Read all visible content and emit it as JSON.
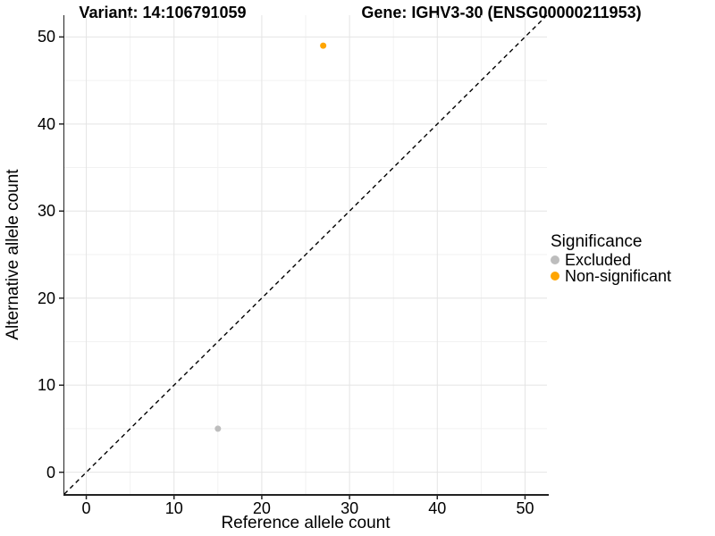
{
  "chart_data": {
    "type": "scatter",
    "titles": {
      "left": "Variant: 14:106791059",
      "right": "Gene: IGHV3-30 (ENSG00000211953)"
    },
    "xlabel": "Reference allele count",
    "ylabel": "Alternative allele count",
    "xlim": [
      -2.5,
      52.5
    ],
    "ylim": [
      -2.5,
      52.5
    ],
    "x_ticks": [
      0,
      10,
      20,
      30,
      40,
      50
    ],
    "y_ticks": [
      0,
      10,
      20,
      30,
      40,
      50
    ],
    "x_minor_ticks": [
      5,
      15,
      25,
      35,
      45
    ],
    "y_minor_ticks": [
      5,
      15,
      25,
      35,
      45
    ],
    "grid": "major+minor",
    "reference_line": {
      "kind": "y=x",
      "style": "dashed",
      "color": "#000000"
    },
    "legend": {
      "title": "Significance",
      "position": "right"
    },
    "series": [
      {
        "name": "Excluded",
        "color": "#BDBDBD",
        "points": [
          {
            "x": 15,
            "y": 5
          }
        ]
      },
      {
        "name": "Non-significant",
        "color": "#FFA500",
        "points": [
          {
            "x": 27,
            "y": 49
          }
        ]
      }
    ]
  },
  "colors": {
    "background": "#FFFFFF",
    "axis": "#222222",
    "grid_major": "#E4E4E4",
    "grid_minor": "#F2F2F2",
    "text": "#000000"
  }
}
